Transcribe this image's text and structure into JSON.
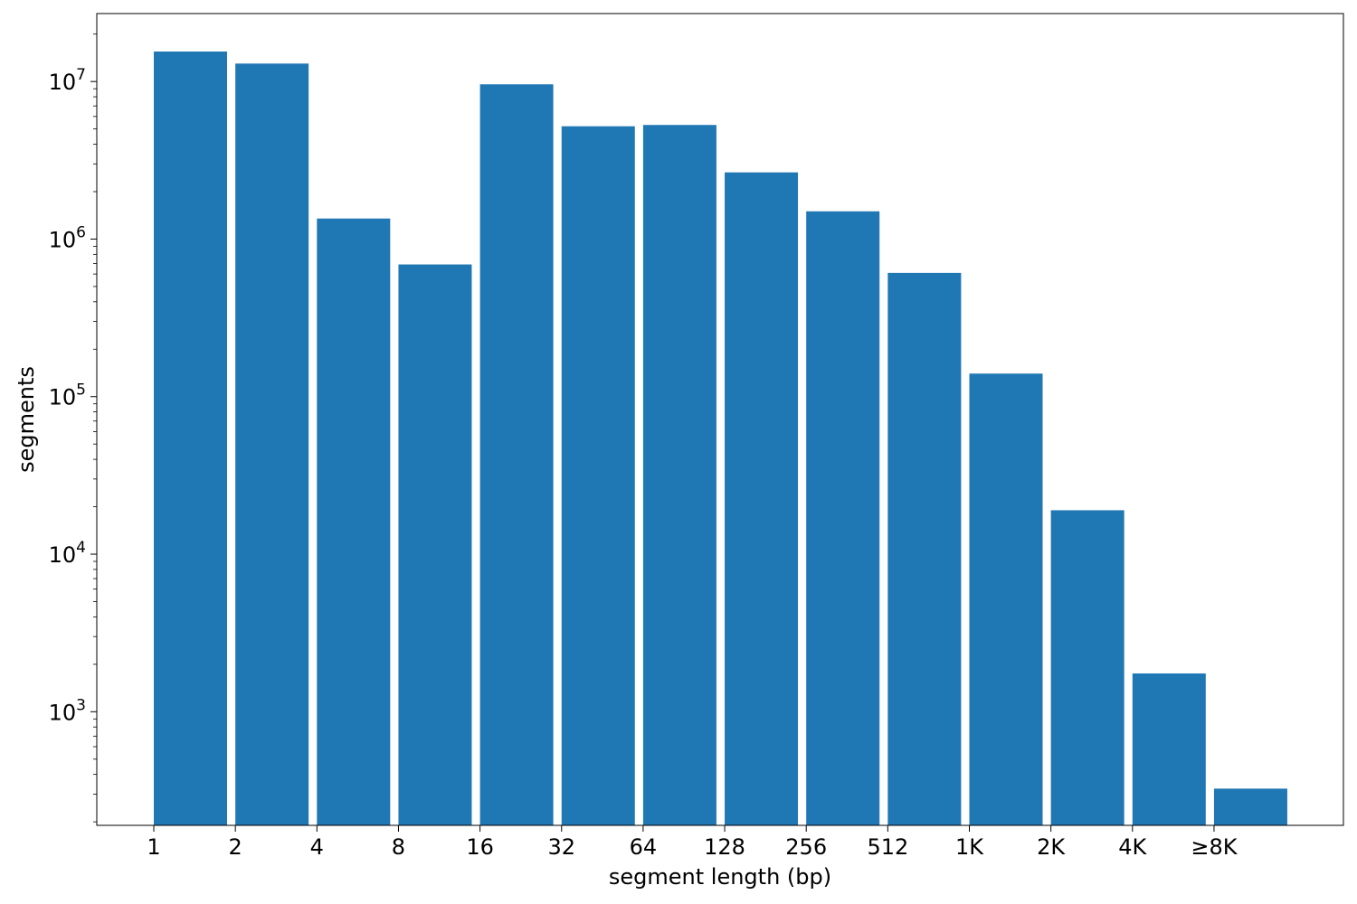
{
  "chart_data": {
    "type": "bar",
    "title": "",
    "xlabel": "segment length (bp)",
    "ylabel": "segments",
    "yscale": "log",
    "ylim": [
      190,
      27000000
    ],
    "grid": false,
    "legend": "none",
    "bar_color": "#1f77b4",
    "categories": [
      "1",
      "2",
      "4",
      "8",
      "16",
      "32",
      "64",
      "128",
      "256",
      "512",
      "1K",
      "2K",
      "4K",
      "≥8K"
    ],
    "values": [
      15500000,
      13000000,
      1350000,
      690000,
      9600000,
      5200000,
      5300000,
      2650000,
      1500000,
      610000,
      140000,
      19000,
      1750,
      325
    ],
    "yticks": [
      {
        "value": 1000,
        "base": "10",
        "exp": "3"
      },
      {
        "value": 10000,
        "base": "10",
        "exp": "4"
      },
      {
        "value": 100000,
        "base": "10",
        "exp": "5"
      },
      {
        "value": 1000000,
        "base": "10",
        "exp": "6"
      },
      {
        "value": 10000000,
        "base": "10",
        "exp": "7"
      }
    ]
  }
}
